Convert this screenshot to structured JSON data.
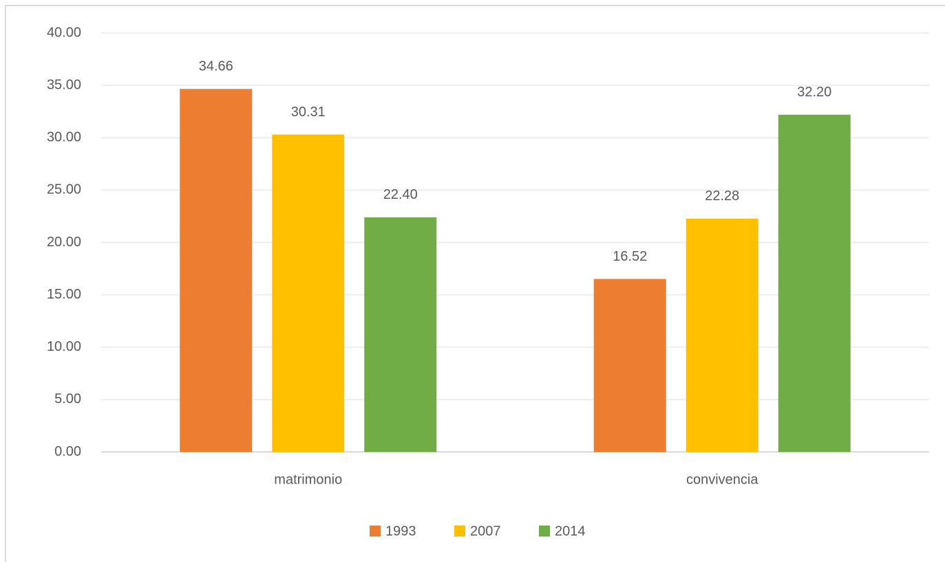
{
  "chart_data": {
    "type": "bar",
    "categories": [
      "matrimonio",
      "convivencia"
    ],
    "series": [
      {
        "name": "1993",
        "color": "#ed7d31",
        "values": [
          34.66,
          16.52
        ],
        "value_labels": [
          "34.66",
          "16.52"
        ]
      },
      {
        "name": "2007",
        "color": "#ffc000",
        "values": [
          30.31,
          22.28
        ],
        "value_labels": [
          "30.31",
          "22.28"
        ]
      },
      {
        "name": "2014",
        "color": "#70ad47",
        "values": [
          22.4,
          32.2
        ],
        "value_labels": [
          "22.40",
          "32.20"
        ]
      }
    ],
    "ylim": [
      0,
      40
    ],
    "yticks": [
      {
        "value": 0,
        "label": "0.00"
      },
      {
        "value": 5,
        "label": "5.00"
      },
      {
        "value": 10,
        "label": "10.00"
      },
      {
        "value": 15,
        "label": "15.00"
      },
      {
        "value": 20,
        "label": "20.00"
      },
      {
        "value": 25,
        "label": "25.00"
      },
      {
        "value": 30,
        "label": "30.00"
      },
      {
        "value": 35,
        "label": "35.00"
      },
      {
        "value": 40,
        "label": "40.00"
      }
    ],
    "grid": true,
    "legend": "bottom"
  }
}
